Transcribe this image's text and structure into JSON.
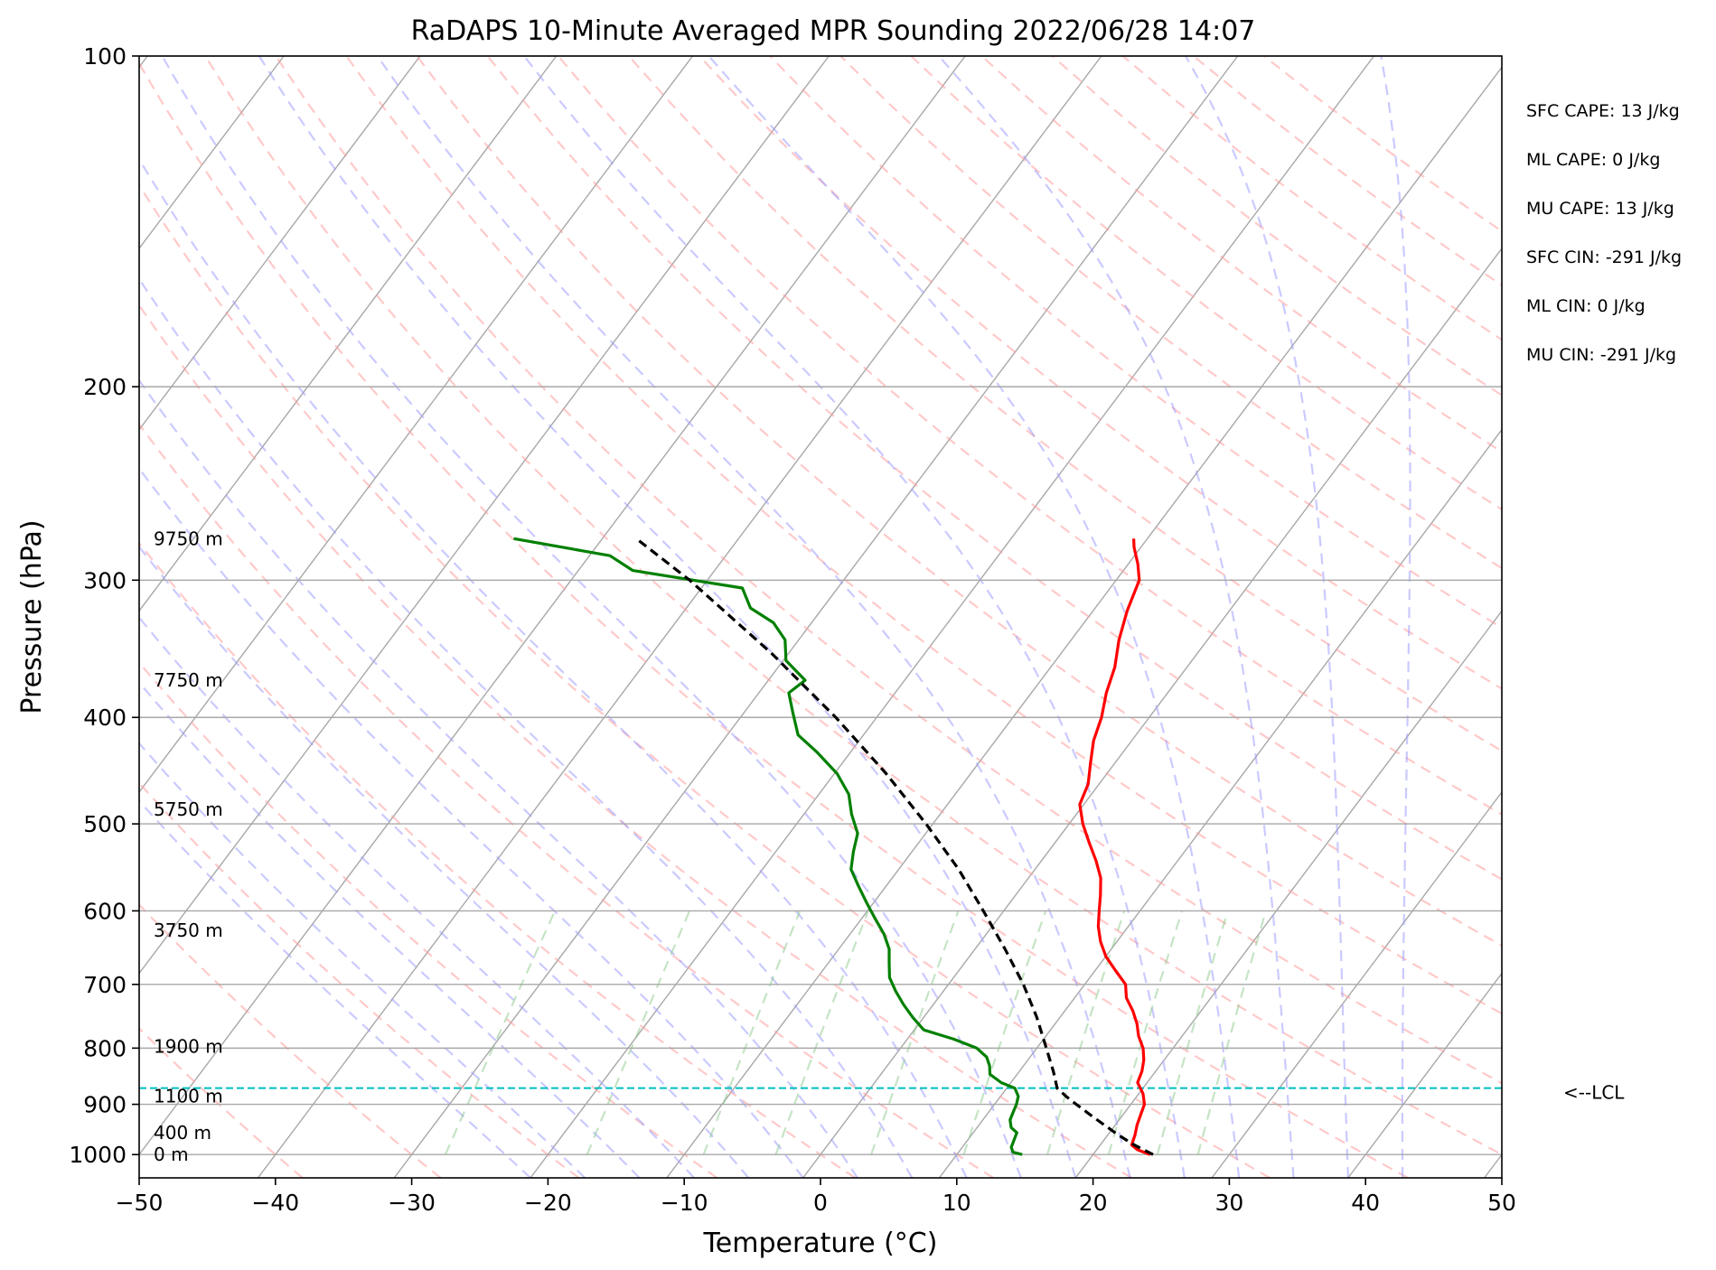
{
  "chart_data": {
    "type": "line",
    "title": "RaDAPS 10-Minute Averaged MPR Sounding 2022/06/28 14:07",
    "xlabel": "Temperature (°C)",
    "ylabel": "Pressure (hPa)",
    "xlim": [
      -50,
      50
    ],
    "ylim": [
      1050,
      100
    ],
    "y_scale": "log",
    "grid": true,
    "x_ticks": [
      {
        "value": -50,
        "label": "−50"
      },
      {
        "value": -40,
        "label": "−40"
      },
      {
        "value": -30,
        "label": "−30"
      },
      {
        "value": -20,
        "label": "−20"
      },
      {
        "value": -10,
        "label": "−10"
      },
      {
        "value": 0,
        "label": "0"
      },
      {
        "value": 10,
        "label": "10"
      },
      {
        "value": 20,
        "label": "20"
      },
      {
        "value": 30,
        "label": "30"
      },
      {
        "value": 40,
        "label": "40"
      },
      {
        "value": 50,
        "label": "50"
      }
    ],
    "y_ticks": [
      {
        "value": 100,
        "label": "100"
      },
      {
        "value": 200,
        "label": "200"
      },
      {
        "value": 300,
        "label": "300"
      },
      {
        "value": 400,
        "label": "400"
      },
      {
        "value": 500,
        "label": "500"
      },
      {
        "value": 600,
        "label": "600"
      },
      {
        "value": 700,
        "label": "700"
      },
      {
        "value": 800,
        "label": "800"
      },
      {
        "value": 900,
        "label": "900"
      },
      {
        "value": 1000,
        "label": "1000"
      }
    ],
    "height_labels": [
      {
        "p": 1000,
        "label": "0 m"
      },
      {
        "p": 955,
        "label": "400 m"
      },
      {
        "p": 885,
        "label": "1100 m"
      },
      {
        "p": 797,
        "label": "1900 m"
      },
      {
        "p": 625,
        "label": "3750 m"
      },
      {
        "p": 485,
        "label": "5750 m"
      },
      {
        "p": 370,
        "label": "7750 m"
      },
      {
        "p": 275,
        "label": "9750 m"
      }
    ],
    "series": [
      {
        "role": "temperature",
        "color": "#ff0000",
        "points": [
          {
            "p": 1000,
            "t": 24.2
          },
          {
            "p": 990,
            "t": 23.0
          },
          {
            "p": 980,
            "t": 22.3
          },
          {
            "p": 960,
            "t": 22.0
          },
          {
            "p": 940,
            "t": 21.6
          },
          {
            "p": 920,
            "t": 21.3
          },
          {
            "p": 900,
            "t": 21.0
          },
          {
            "p": 880,
            "t": 20.3
          },
          {
            "p": 860,
            "t": 19.3
          },
          {
            "p": 840,
            "t": 19.0
          },
          {
            "p": 820,
            "t": 18.5
          },
          {
            "p": 800,
            "t": 17.8
          },
          {
            "p": 780,
            "t": 16.8
          },
          {
            "p": 760,
            "t": 16.0
          },
          {
            "p": 740,
            "t": 15.0
          },
          {
            "p": 720,
            "t": 13.8
          },
          {
            "p": 700,
            "t": 13.0
          },
          {
            "p": 680,
            "t": 11.5
          },
          {
            "p": 660,
            "t": 10.0
          },
          {
            "p": 640,
            "t": 8.8
          },
          {
            "p": 620,
            "t": 7.8
          },
          {
            "p": 600,
            "t": 7.0
          },
          {
            "p": 580,
            "t": 6.2
          },
          {
            "p": 560,
            "t": 5.3
          },
          {
            "p": 540,
            "t": 4.0
          },
          {
            "p": 520,
            "t": 2.5
          },
          {
            "p": 500,
            "t": 1.0
          },
          {
            "p": 480,
            "t": -0.3
          },
          {
            "p": 460,
            "t": -0.8
          },
          {
            "p": 440,
            "t": -1.8
          },
          {
            "p": 420,
            "t": -2.8
          },
          {
            "p": 400,
            "t": -3.5
          },
          {
            "p": 380,
            "t": -4.5
          },
          {
            "p": 360,
            "t": -5.3
          },
          {
            "p": 340,
            "t": -6.5
          },
          {
            "p": 320,
            "t": -7.5
          },
          {
            "p": 300,
            "t": -8.3
          },
          {
            "p": 290,
            "t": -9.3
          },
          {
            "p": 280,
            "t": -10.5
          },
          {
            "p": 275,
            "t": -11.0
          }
        ]
      },
      {
        "role": "dewpoint",
        "color": "#008000",
        "points": [
          {
            "p": 1000,
            "t": 14.8
          },
          {
            "p": 995,
            "t": 14.0
          },
          {
            "p": 985,
            "t": 13.6
          },
          {
            "p": 970,
            "t": 13.4
          },
          {
            "p": 955,
            "t": 13.2
          },
          {
            "p": 945,
            "t": 12.5
          },
          {
            "p": 930,
            "t": 12.0
          },
          {
            "p": 915,
            "t": 11.8
          },
          {
            "p": 900,
            "t": 11.6
          },
          {
            "p": 885,
            "t": 11.3
          },
          {
            "p": 870,
            "t": 10.6
          },
          {
            "p": 860,
            "t": 9.3
          },
          {
            "p": 845,
            "t": 8.0
          },
          {
            "p": 830,
            "t": 7.5
          },
          {
            "p": 815,
            "t": 6.8
          },
          {
            "p": 800,
            "t": 5.6
          },
          {
            "p": 785,
            "t": 3.4
          },
          {
            "p": 770,
            "t": 0.7
          },
          {
            "p": 750,
            "t": -0.8
          },
          {
            "p": 730,
            "t": -2.2
          },
          {
            "p": 710,
            "t": -3.5
          },
          {
            "p": 690,
            "t": -4.7
          },
          {
            "p": 670,
            "t": -5.5
          },
          {
            "p": 650,
            "t": -6.3
          },
          {
            "p": 630,
            "t": -7.5
          },
          {
            "p": 610,
            "t": -9.0
          },
          {
            "p": 590,
            "t": -10.5
          },
          {
            "p": 570,
            "t": -12.0
          },
          {
            "p": 550,
            "t": -13.5
          },
          {
            "p": 530,
            "t": -14.3
          },
          {
            "p": 510,
            "t": -15.0
          },
          {
            "p": 490,
            "t": -16.5
          },
          {
            "p": 470,
            "t": -17.8
          },
          {
            "p": 450,
            "t": -19.8
          },
          {
            "p": 430,
            "t": -22.5
          },
          {
            "p": 415,
            "t": -24.8
          },
          {
            "p": 395,
            "t": -26.5
          },
          {
            "p": 380,
            "t": -27.8
          },
          {
            "p": 370,
            "t": -27.3
          },
          {
            "p": 355,
            "t": -29.8
          },
          {
            "p": 340,
            "t": -31.0
          },
          {
            "p": 328,
            "t": -32.8
          },
          {
            "p": 318,
            "t": -35.3
          },
          {
            "p": 305,
            "t": -37.0
          },
          {
            "p": 294,
            "t": -46.0
          },
          {
            "p": 285,
            "t": -48.5
          },
          {
            "p": 275,
            "t": -56.5
          }
        ]
      },
      {
        "role": "parcel",
        "color": "#000000",
        "points": [
          {
            "p": 1000,
            "t": 24.4
          },
          {
            "p": 980,
            "t": 22.5
          },
          {
            "p": 960,
            "t": 20.8
          },
          {
            "p": 940,
            "t": 19.2
          },
          {
            "p": 920,
            "t": 17.6
          },
          {
            "p": 900,
            "t": 16.0
          },
          {
            "p": 885,
            "t": 14.8
          },
          {
            "p": 870,
            "t": 13.7
          },
          {
            "p": 840,
            "t": 12.5
          },
          {
            "p": 800,
            "t": 10.7
          },
          {
            "p": 750,
            "t": 8.3
          },
          {
            "p": 700,
            "t": 5.5
          },
          {
            "p": 650,
            "t": 2.2
          },
          {
            "p": 600,
            "t": -1.5
          },
          {
            "p": 550,
            "t": -5.6
          },
          {
            "p": 500,
            "t": -10.5
          },
          {
            "p": 450,
            "t": -16.2
          },
          {
            "p": 400,
            "t": -23.0
          },
          {
            "p": 350,
            "t": -31.2
          },
          {
            "p": 300,
            "t": -41.3
          },
          {
            "p": 275,
            "t": -47.5
          }
        ]
      }
    ],
    "lcl": {
      "p": 870,
      "label": "<--LCL",
      "color": "#00bfbf"
    },
    "indices": [
      "SFC CAPE: 13 J/kg",
      "ML CAPE: 0 J/kg",
      "MU CAPE: 13 J/kg",
      "SFC CIN: -291 J/kg",
      "ML CIN: 0 J/kg",
      "MU CIN: -291 J/kg"
    ]
  }
}
